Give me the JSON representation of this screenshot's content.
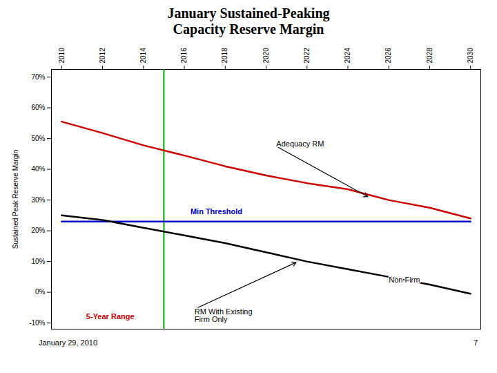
{
  "chart_data": {
    "type": "line",
    "title": "January Sustained-Peaking\nCapacity Reserve Margin",
    "ylabel": "Sustained Peak Reserve Margin",
    "x": [
      2010,
      2012,
      2014,
      2016,
      2018,
      2020,
      2022,
      2024,
      2026,
      2028,
      2030
    ],
    "series": [
      {
        "color": "#cc0000",
        "values": [
          0.555,
          0.518,
          0.478,
          0.445,
          0.41,
          0.38,
          0.355,
          0.335,
          0.3,
          0.275,
          0.24
        ]
      },
      {
        "color": "#0000cc",
        "values": [
          0.23,
          0.23,
          0.23,
          0.23,
          0.23,
          0.23,
          0.23,
          0.23,
          0.23,
          0.23,
          0.23
        ]
      },
      {
        "color": "#000000",
        "values": [
          0.25,
          0.235,
          0.21,
          0.185,
          0.16,
          0.13,
          0.1,
          0.075,
          0.05,
          0.025,
          -0.005
        ]
      }
    ],
    "xlim": [
      2009.5,
      2030.5
    ],
    "xticks": [
      2010,
      2012,
      2014,
      2016,
      2018,
      2020,
      2022,
      2024,
      2026,
      2028,
      2030
    ],
    "ylim": [
      -0.12,
      0.725
    ],
    "yticks": [
      {
        "value": -0.1,
        "label": "-10%"
      },
      {
        "value": 0.0,
        "label": "0%"
      },
      {
        "value": 0.1,
        "label": "10%"
      },
      {
        "value": 0.2,
        "label": "20%"
      },
      {
        "value": 0.3,
        "label": "30%"
      },
      {
        "value": 0.4,
        "label": "40%"
      },
      {
        "value": 0.5,
        "label": "50%"
      },
      {
        "value": 0.6,
        "label": "60%"
      },
      {
        "value": 0.7,
        "label": "70%"
      }
    ],
    "grid": false,
    "vlines": [
      {
        "x": 2015,
        "color": "#00aa00"
      }
    ],
    "annotations": [
      {
        "text": "Adequacy RM",
        "x": 2020.5,
        "y": 0.475,
        "arrow_x": 2025,
        "arrow_y": 0.31
      },
      {
        "text": "Min Threshold",
        "x": 2016.3,
        "y": 0.262,
        "color": "#0000cc"
      },
      {
        "text": "Non Firm",
        "x": 2026.0,
        "y": 0.04
      },
      {
        "text": "RM With Existing\nFirm Only",
        "x": 2016.5,
        "y": -0.055,
        "arrow_x": 2021.5,
        "arrow_y": 0.098
      },
      {
        "text": "5-Year Range",
        "x": 2011.2,
        "y": -0.08,
        "color": "#cc0000"
      }
    ],
    "caption_left": "January 29, 2010",
    "caption_right": "7"
  }
}
